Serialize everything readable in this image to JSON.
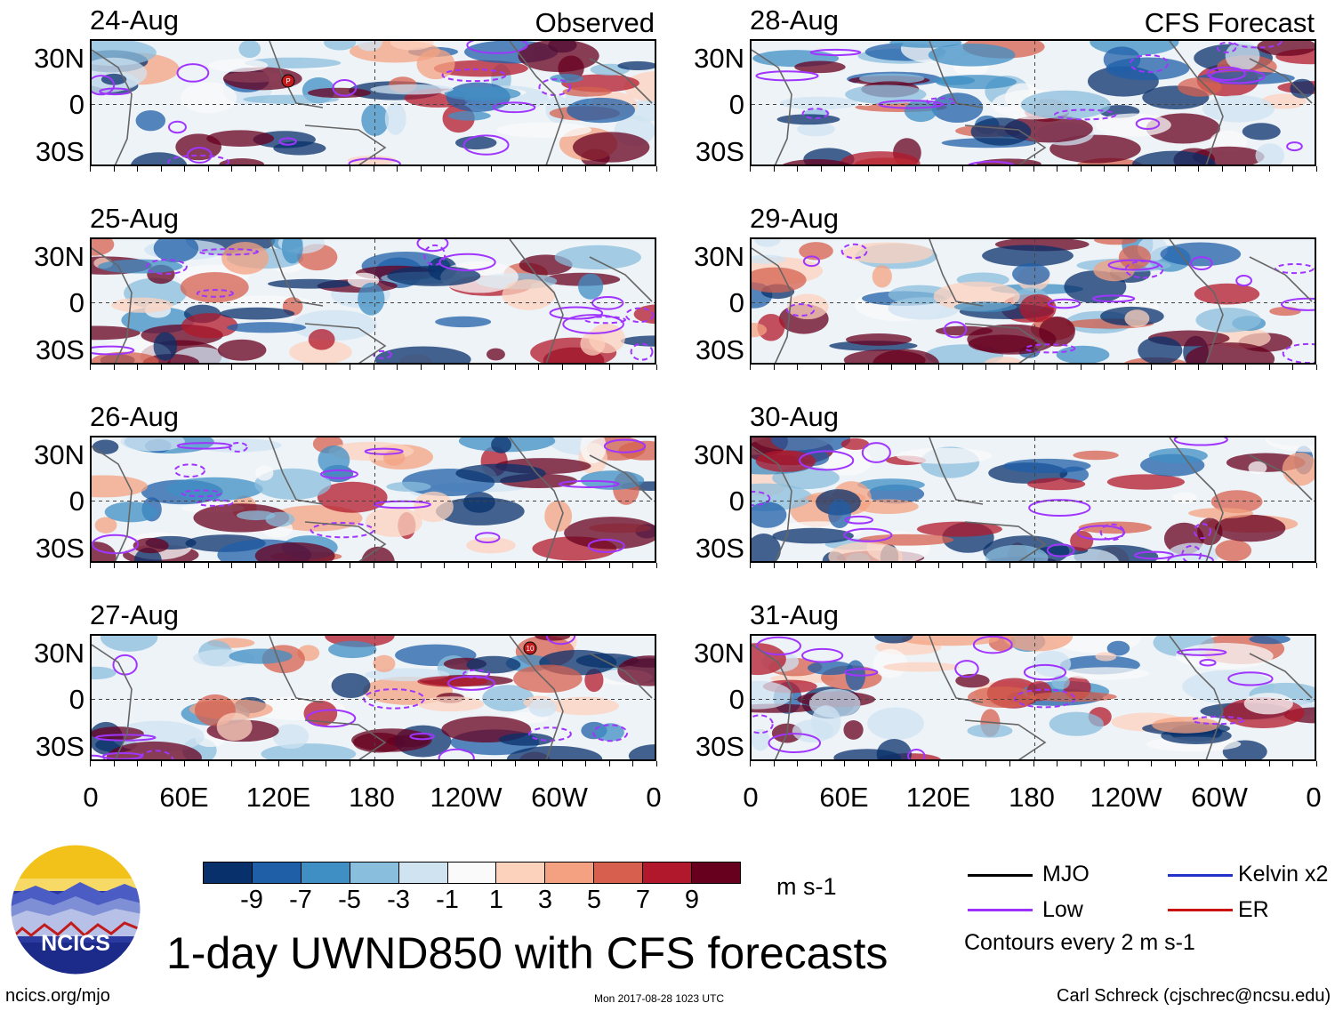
{
  "title": "1-day UWND850 with CFS forecasts",
  "logo": {
    "text": "NCICS"
  },
  "footer": {
    "url": "ncics.org/mjo",
    "timestamp": "Mon 2017-08-28 1023 UTC",
    "author": "Carl Schreck (cjschrec@ncsu.edu)"
  },
  "columns": {
    "left": {
      "header": "Observed"
    },
    "right": {
      "header": "CFS Forecast"
    }
  },
  "panels": [
    {
      "date": "24-Aug",
      "kind": "observed",
      "storm_marker": "P"
    },
    {
      "date": "25-Aug",
      "kind": "observed"
    },
    {
      "date": "26-Aug",
      "kind": "observed"
    },
    {
      "date": "27-Aug",
      "kind": "observed",
      "storm_marker": "10"
    },
    {
      "date": "28-Aug",
      "kind": "forecast"
    },
    {
      "date": "29-Aug",
      "kind": "forecast"
    },
    {
      "date": "30-Aug",
      "kind": "forecast"
    },
    {
      "date": "31-Aug",
      "kind": "forecast"
    }
  ],
  "y_axis": {
    "labels": [
      "30N",
      "0",
      "30S"
    ]
  },
  "x_axis": {
    "labels": [
      "0",
      "60E",
      "120E",
      "180",
      "120W",
      "60W",
      "0"
    ]
  },
  "colorbar": {
    "unit": "m s-1",
    "ticks": [
      "-9",
      "-7",
      "-5",
      "-3",
      "-1",
      "1",
      "3",
      "5",
      "7",
      "9"
    ],
    "colors": [
      "#08306b",
      "#1f5fa8",
      "#3f8fc4",
      "#89bedc",
      "#cfe3f1",
      "#fafafa",
      "#fcd2bd",
      "#f4a182",
      "#d6604d",
      "#b2182b",
      "#67001f"
    ]
  },
  "legend": {
    "items": [
      {
        "label": "MJO",
        "color": "#000000"
      },
      {
        "label": "Kelvin x2",
        "color": "#2233cc"
      },
      {
        "label": "Low",
        "color": "#9b30ff"
      },
      {
        "label": "ER",
        "color": "#cc1111"
      }
    ],
    "note": "Contours every 2 m s-1"
  }
}
